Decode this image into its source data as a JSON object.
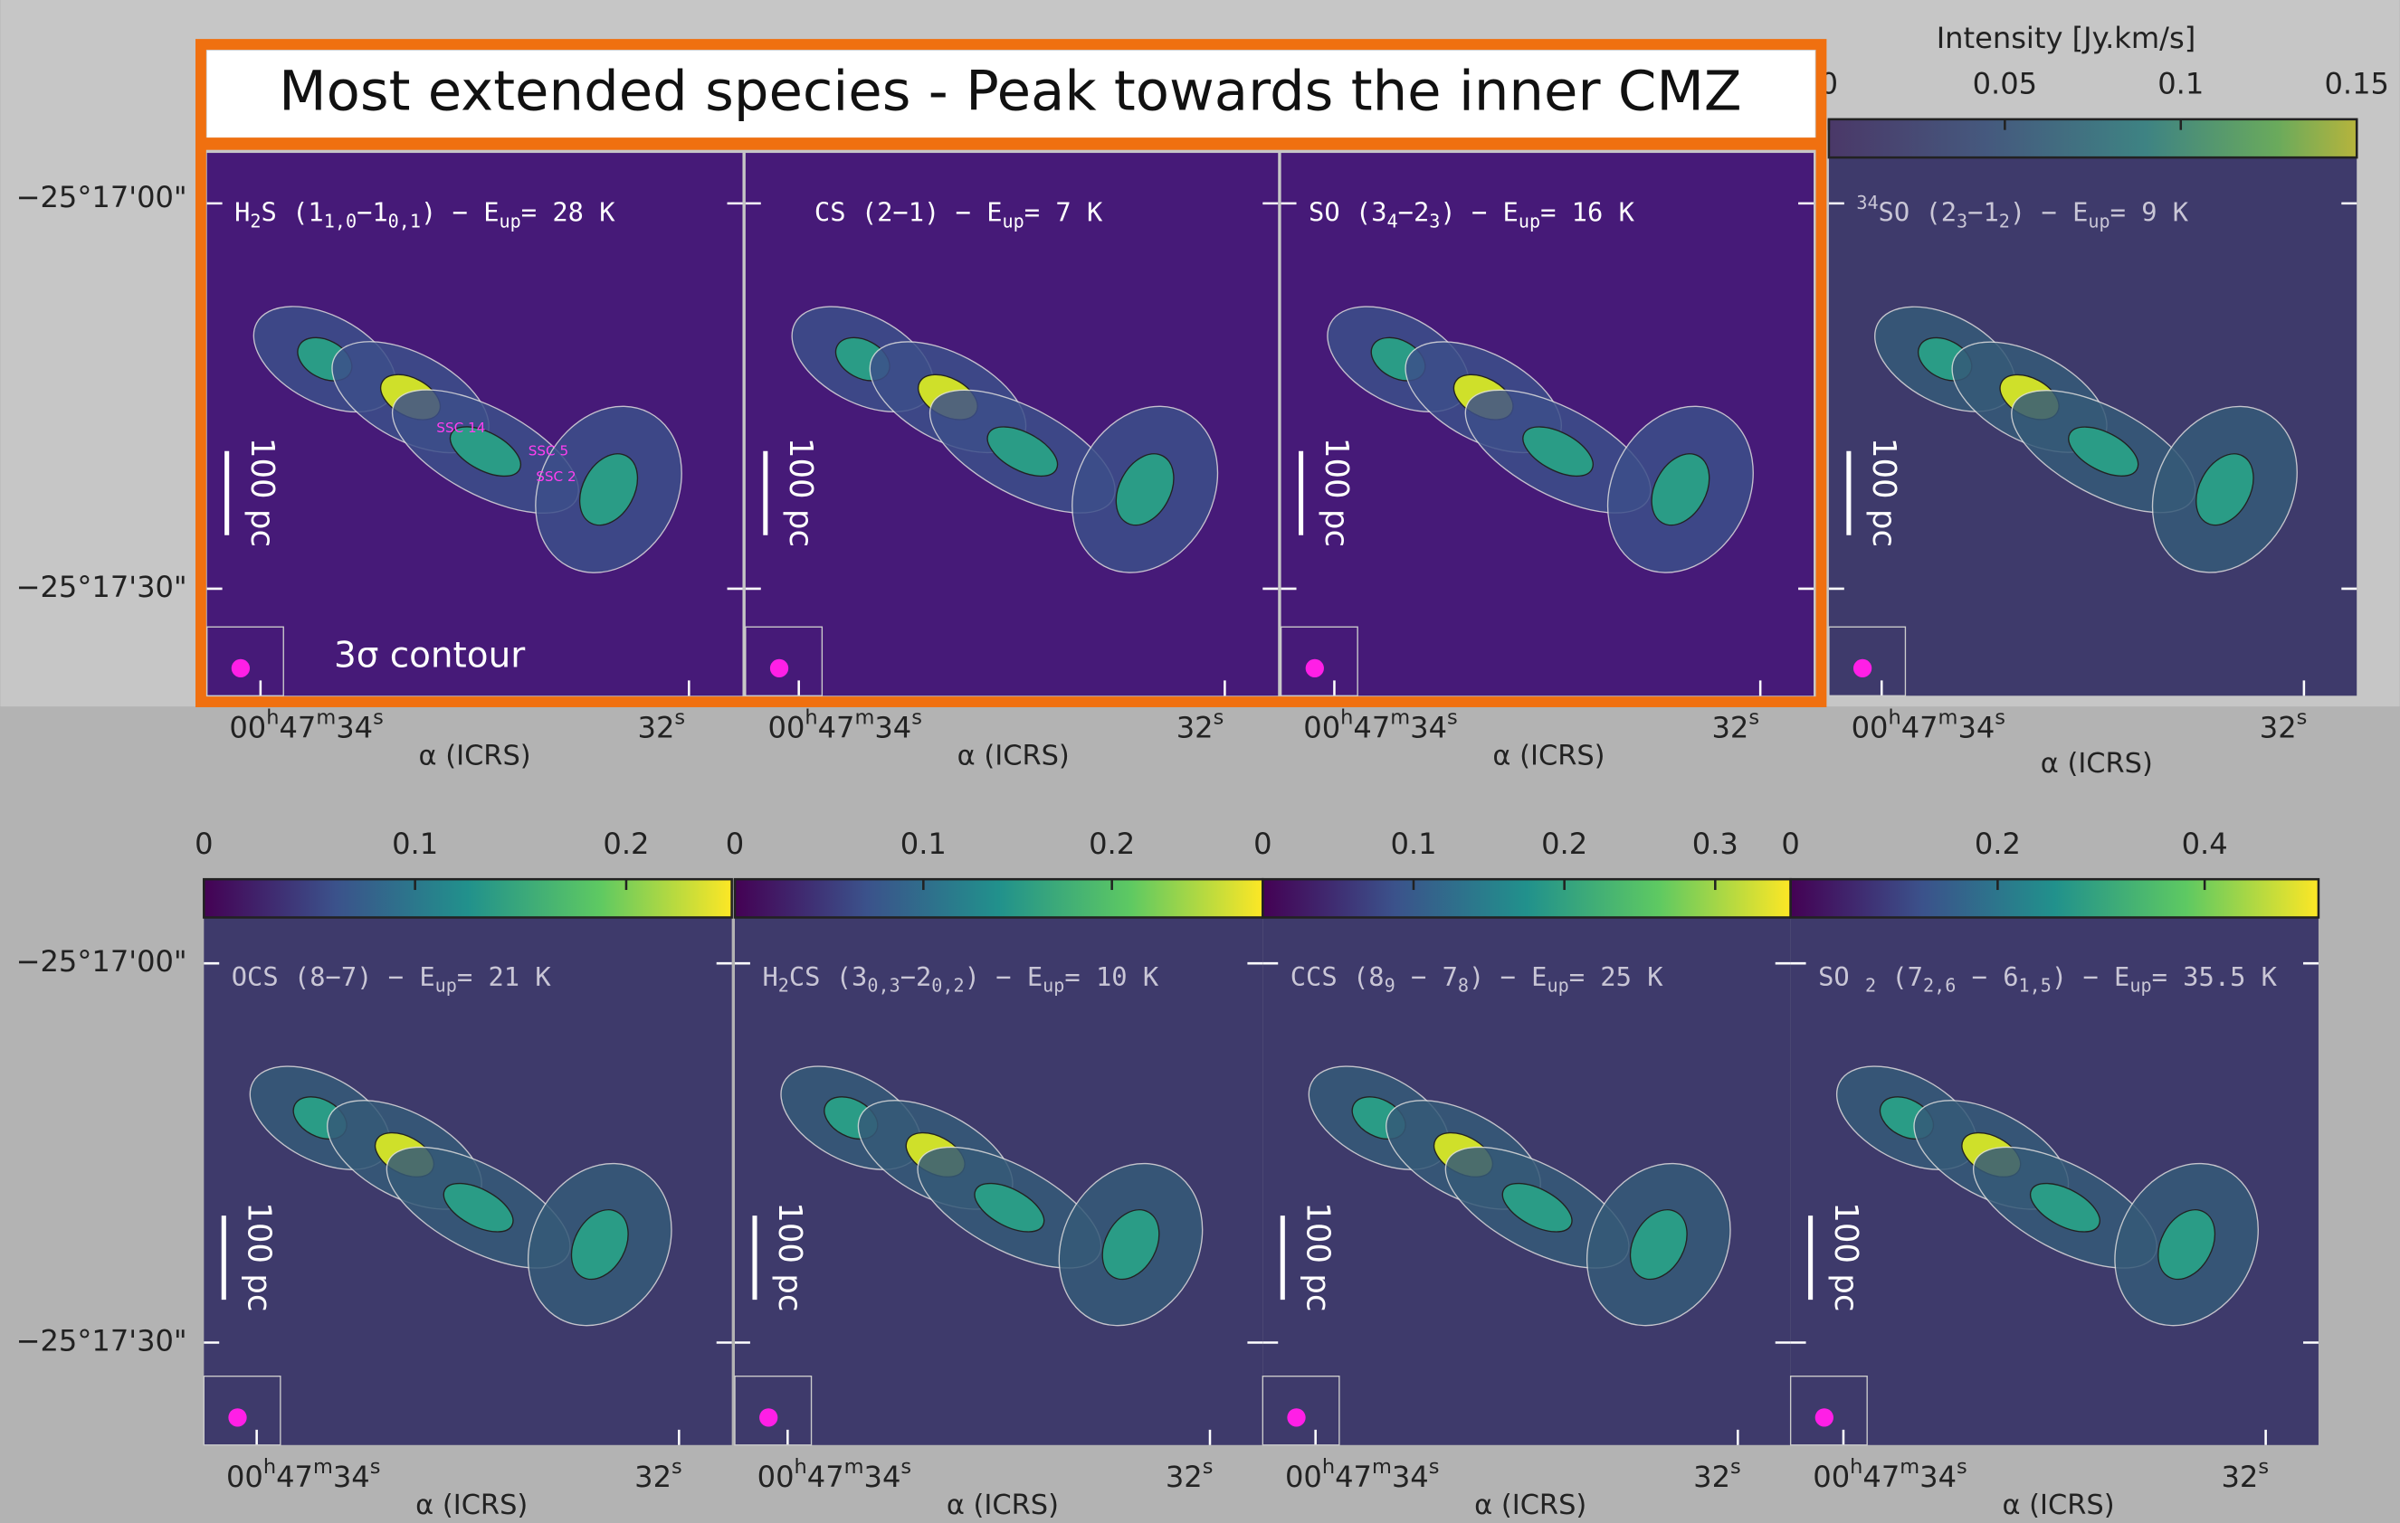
{
  "banner": {
    "title": "Most extended species - Peak towards the inner CMZ"
  },
  "annotation": "3σ contour",
  "source_labels": [
    "SSC 14",
    "SSC 5",
    "SSC 2"
  ],
  "dec_ticks": [
    "−25°17'00\"",
    "−25°17'30\""
  ],
  "ra_ticks": [
    [
      "00",
      {
        "sup": "h"
      },
      "47",
      {
        "sup": "m"
      },
      "34",
      {
        "sup": "s"
      }
    ],
    [
      "32",
      {
        "sup": "s"
      }
    ]
  ],
  "ra_axis_label": "α (ICRS)",
  "scale_bar": "100 pc",
  "colorbar_label": "Intensity [Jy.km/s]",
  "panels": [
    {
      "label": [
        "H",
        {
          "sub": "2"
        },
        "S (1",
        {
          "sub": "1,0"
        },
        "−1",
        {
          "sub": "0,1"
        },
        ") − E",
        {
          "sub": "up"
        },
        "= 28 K"
      ]
    },
    {
      "label": [
        "CS (2−1) − E",
        {
          "sub": "up"
        },
        "= 7 K"
      ]
    },
    {
      "label": [
        "SO (3",
        {
          "sub": "4"
        },
        "−2",
        {
          "sub": "3"
        },
        ") − E",
        {
          "sub": "up"
        },
        "= 16 K"
      ]
    },
    {
      "label": [
        {
          "sup": "34"
        },
        "SO (2",
        {
          "sub": "3"
        },
        "−1",
        {
          "sub": "2"
        },
        ") − E",
        {
          "sub": "up"
        },
        "= 9 K"
      ],
      "colorbar": {
        "lim": [
          0,
          0.15
        ],
        "ticks": [
          0,
          0.05,
          0.1,
          0.15
        ]
      }
    },
    {
      "label": [
        "OCS (8−7) − E",
        {
          "sub": "up"
        },
        "= 21 K"
      ],
      "colorbar": {
        "lim": [
          0,
          0.25
        ],
        "ticks": [
          0,
          0.1,
          0.2
        ]
      }
    },
    {
      "label": [
        "H",
        {
          "sub": "2"
        },
        "CS (3",
        {
          "sub": "0,3"
        },
        "−2",
        {
          "sub": "0,2"
        },
        ") − E",
        {
          "sub": "up"
        },
        "= 10 K"
      ],
      "colorbar": {
        "lim": [
          0,
          0.28
        ],
        "ticks": [
          0,
          0.1,
          0.2
        ]
      }
    },
    {
      "label": [
        "CCS (8",
        {
          "sub": "9"
        },
        " − 7",
        {
          "sub": "8"
        },
        ") − E",
        {
          "sub": "up"
        },
        "= 25 K"
      ],
      "colorbar": {
        "lim": [
          0,
          0.35
        ],
        "ticks": [
          0,
          0.1,
          0.2,
          0.3
        ]
      }
    },
    {
      "label": [
        "SO ",
        {
          "sub": "2"
        },
        " (7",
        {
          "sub": "2,6"
        },
        " − 6",
        {
          "sub": "1,5"
        },
        ") − E",
        {
          "sub": "up"
        },
        "= 35.5 K"
      ],
      "colorbar": {
        "lim": [
          0,
          0.51
        ],
        "ticks": [
          0,
          0.2,
          0.4
        ]
      }
    }
  ]
}
